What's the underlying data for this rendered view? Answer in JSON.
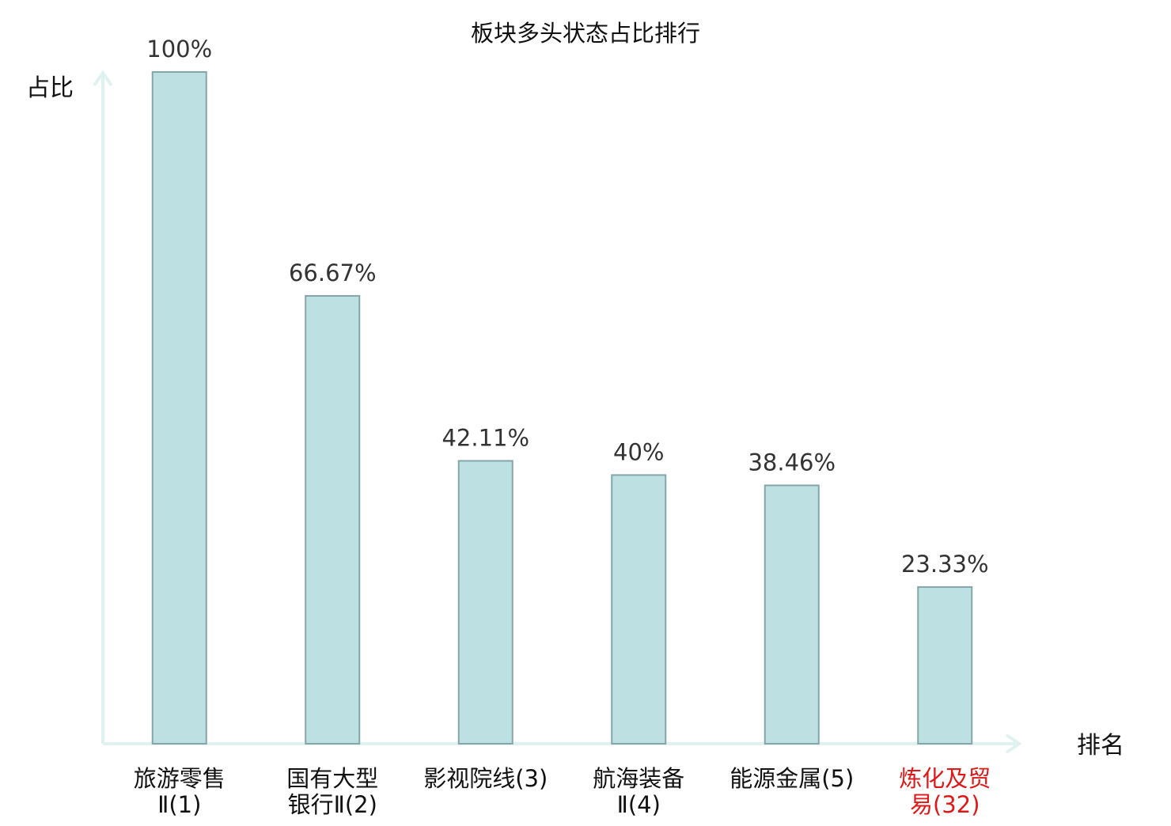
{
  "colors": {
    "bar_fill": "#bde0e3",
    "bar_stroke": "#86a5aa",
    "axis": "#dff2ef",
    "text": "#111111",
    "value_text": "#333333",
    "highlight": "#e01818"
  },
  "chart_data": {
    "type": "bar",
    "title": "板块多头状态占比排行",
    "ylabel": "占比",
    "xlabel": "排名",
    "ylim": [
      0,
      100
    ],
    "categories": [
      {
        "lines": [
          "旅游零售",
          "Ⅱ(1)"
        ],
        "highlight": false
      },
      {
        "lines": [
          "国有大型",
          "银行Ⅱ(2)"
        ],
        "highlight": false
      },
      {
        "lines": [
          "影视院线(3)"
        ],
        "highlight": false
      },
      {
        "lines": [
          "航海装备",
          "Ⅱ(4)"
        ],
        "highlight": false
      },
      {
        "lines": [
          "能源金属(5)"
        ],
        "highlight": false
      },
      {
        "lines": [
          "炼化及贸",
          "易(32)"
        ],
        "highlight": true
      }
    ],
    "values": [
      100,
      66.67,
      42.11,
      40,
      38.46,
      23.33
    ],
    "value_labels": [
      "100%",
      "66.67%",
      "42.11%",
      "40%",
      "38.46%",
      "23.33%"
    ]
  }
}
